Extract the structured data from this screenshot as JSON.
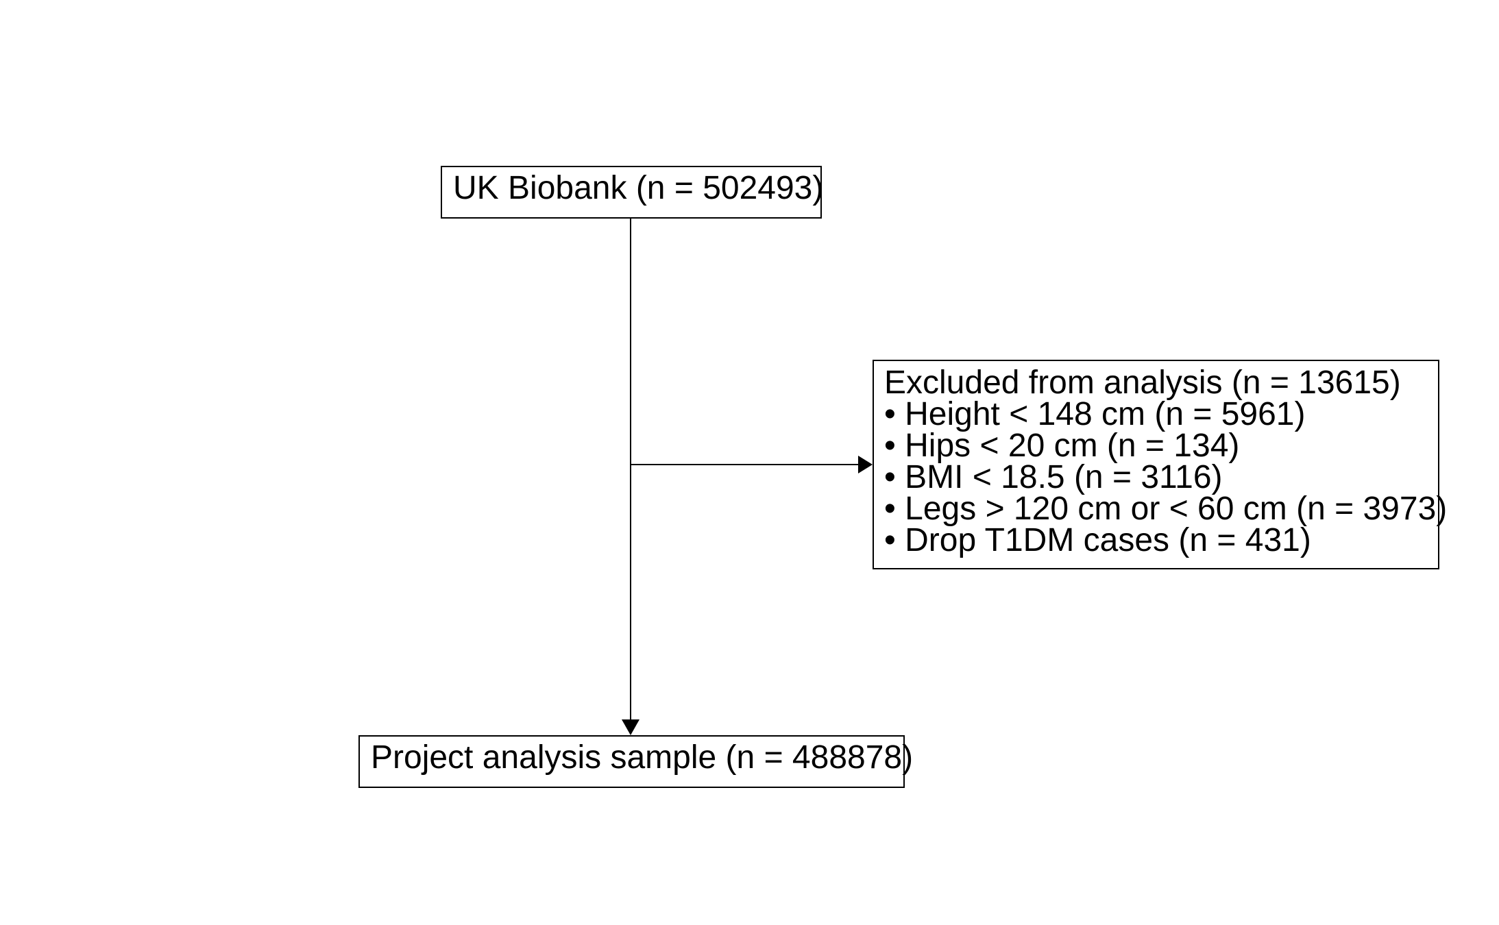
{
  "diagram": {
    "source_box": {
      "label": "UK Biobank (n = 502493)"
    },
    "excluded_box": {
      "title": "Excluded from analysis (n = 13615)",
      "items": [
        "• Height < 148 cm (n = 5961)",
        "• Hips < 20 cm (n = 134)",
        "• BMI < 18.5 (n = 3116)",
        "• Legs > 120 cm or < 60 cm (n = 3973)",
        "• Drop T1DM cases (n = 431)"
      ]
    },
    "result_box": {
      "label": "Project analysis sample (n = 488878)"
    },
    "colors": {
      "line": "#000000",
      "background": "#ffffff"
    }
  }
}
